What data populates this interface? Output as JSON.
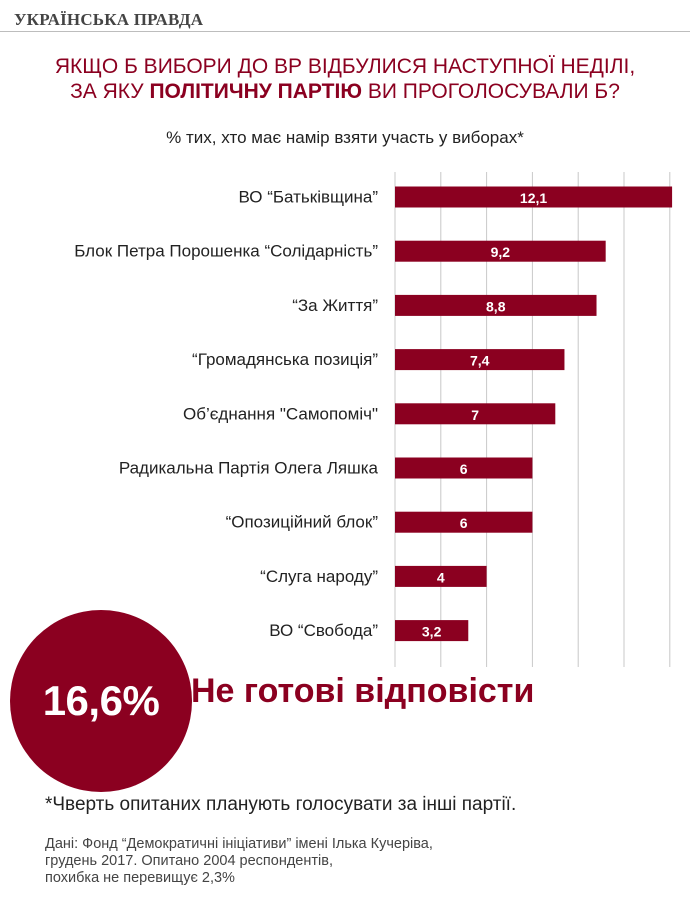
{
  "header": {
    "logo_text": "УКРАЇНСЬКА ПРАВДА"
  },
  "title": {
    "line1": "ЯКЩО Б ВИБОРИ ДО ВР ВІДБУЛИСЯ НАСТУПНОЇ НЕДІЛІ,",
    "line2_pre": "ЗА ЯКУ ",
    "line2_bold": "ПОЛІТИЧНУ ПАРТІЮ",
    "line2_post": " ВИ ПРОГОЛОСУВАЛИ Б?"
  },
  "subtitle": "% тих, хто має намір взяти участь у виборах*",
  "chart_data": {
    "type": "bar",
    "orientation": "horizontal",
    "categories": [
      "ВО “Батьківщина”",
      "Блок Петра Порошенка “Солідарність”",
      "“За Життя”",
      "“Громадянська позиція”",
      "Об’єднання \"Самопоміч\"",
      "Радикальна Партія Олега Ляшка",
      "“Опозиційний блок”",
      "“Слуга народу”",
      "ВО “Свобода”"
    ],
    "values": [
      12.1,
      9.2,
      8.8,
      7.4,
      7,
      6,
      6,
      4,
      3.2
    ],
    "value_labels": [
      "12,1",
      "9,2",
      "8,8",
      "7,4",
      "7",
      "6",
      "6",
      "4",
      "3,2"
    ],
    "xlim": [
      0,
      12
    ],
    "grid": true,
    "bar_color": "#8b0020"
  },
  "highlight": {
    "percent": "16,6%",
    "label": "Не готові відповісти",
    "color": "#8b0020"
  },
  "footnote": "*Чверть опитаних планують голосувати за інші партії.",
  "source": {
    "line1": "Дані: Фонд “Демократичні ініціативи” імені Ілька Кучеріва,",
    "line2": "грудень 2017. Опитано 2004 респондентів,",
    "line3": "похибка не перевищує 2,3%"
  }
}
